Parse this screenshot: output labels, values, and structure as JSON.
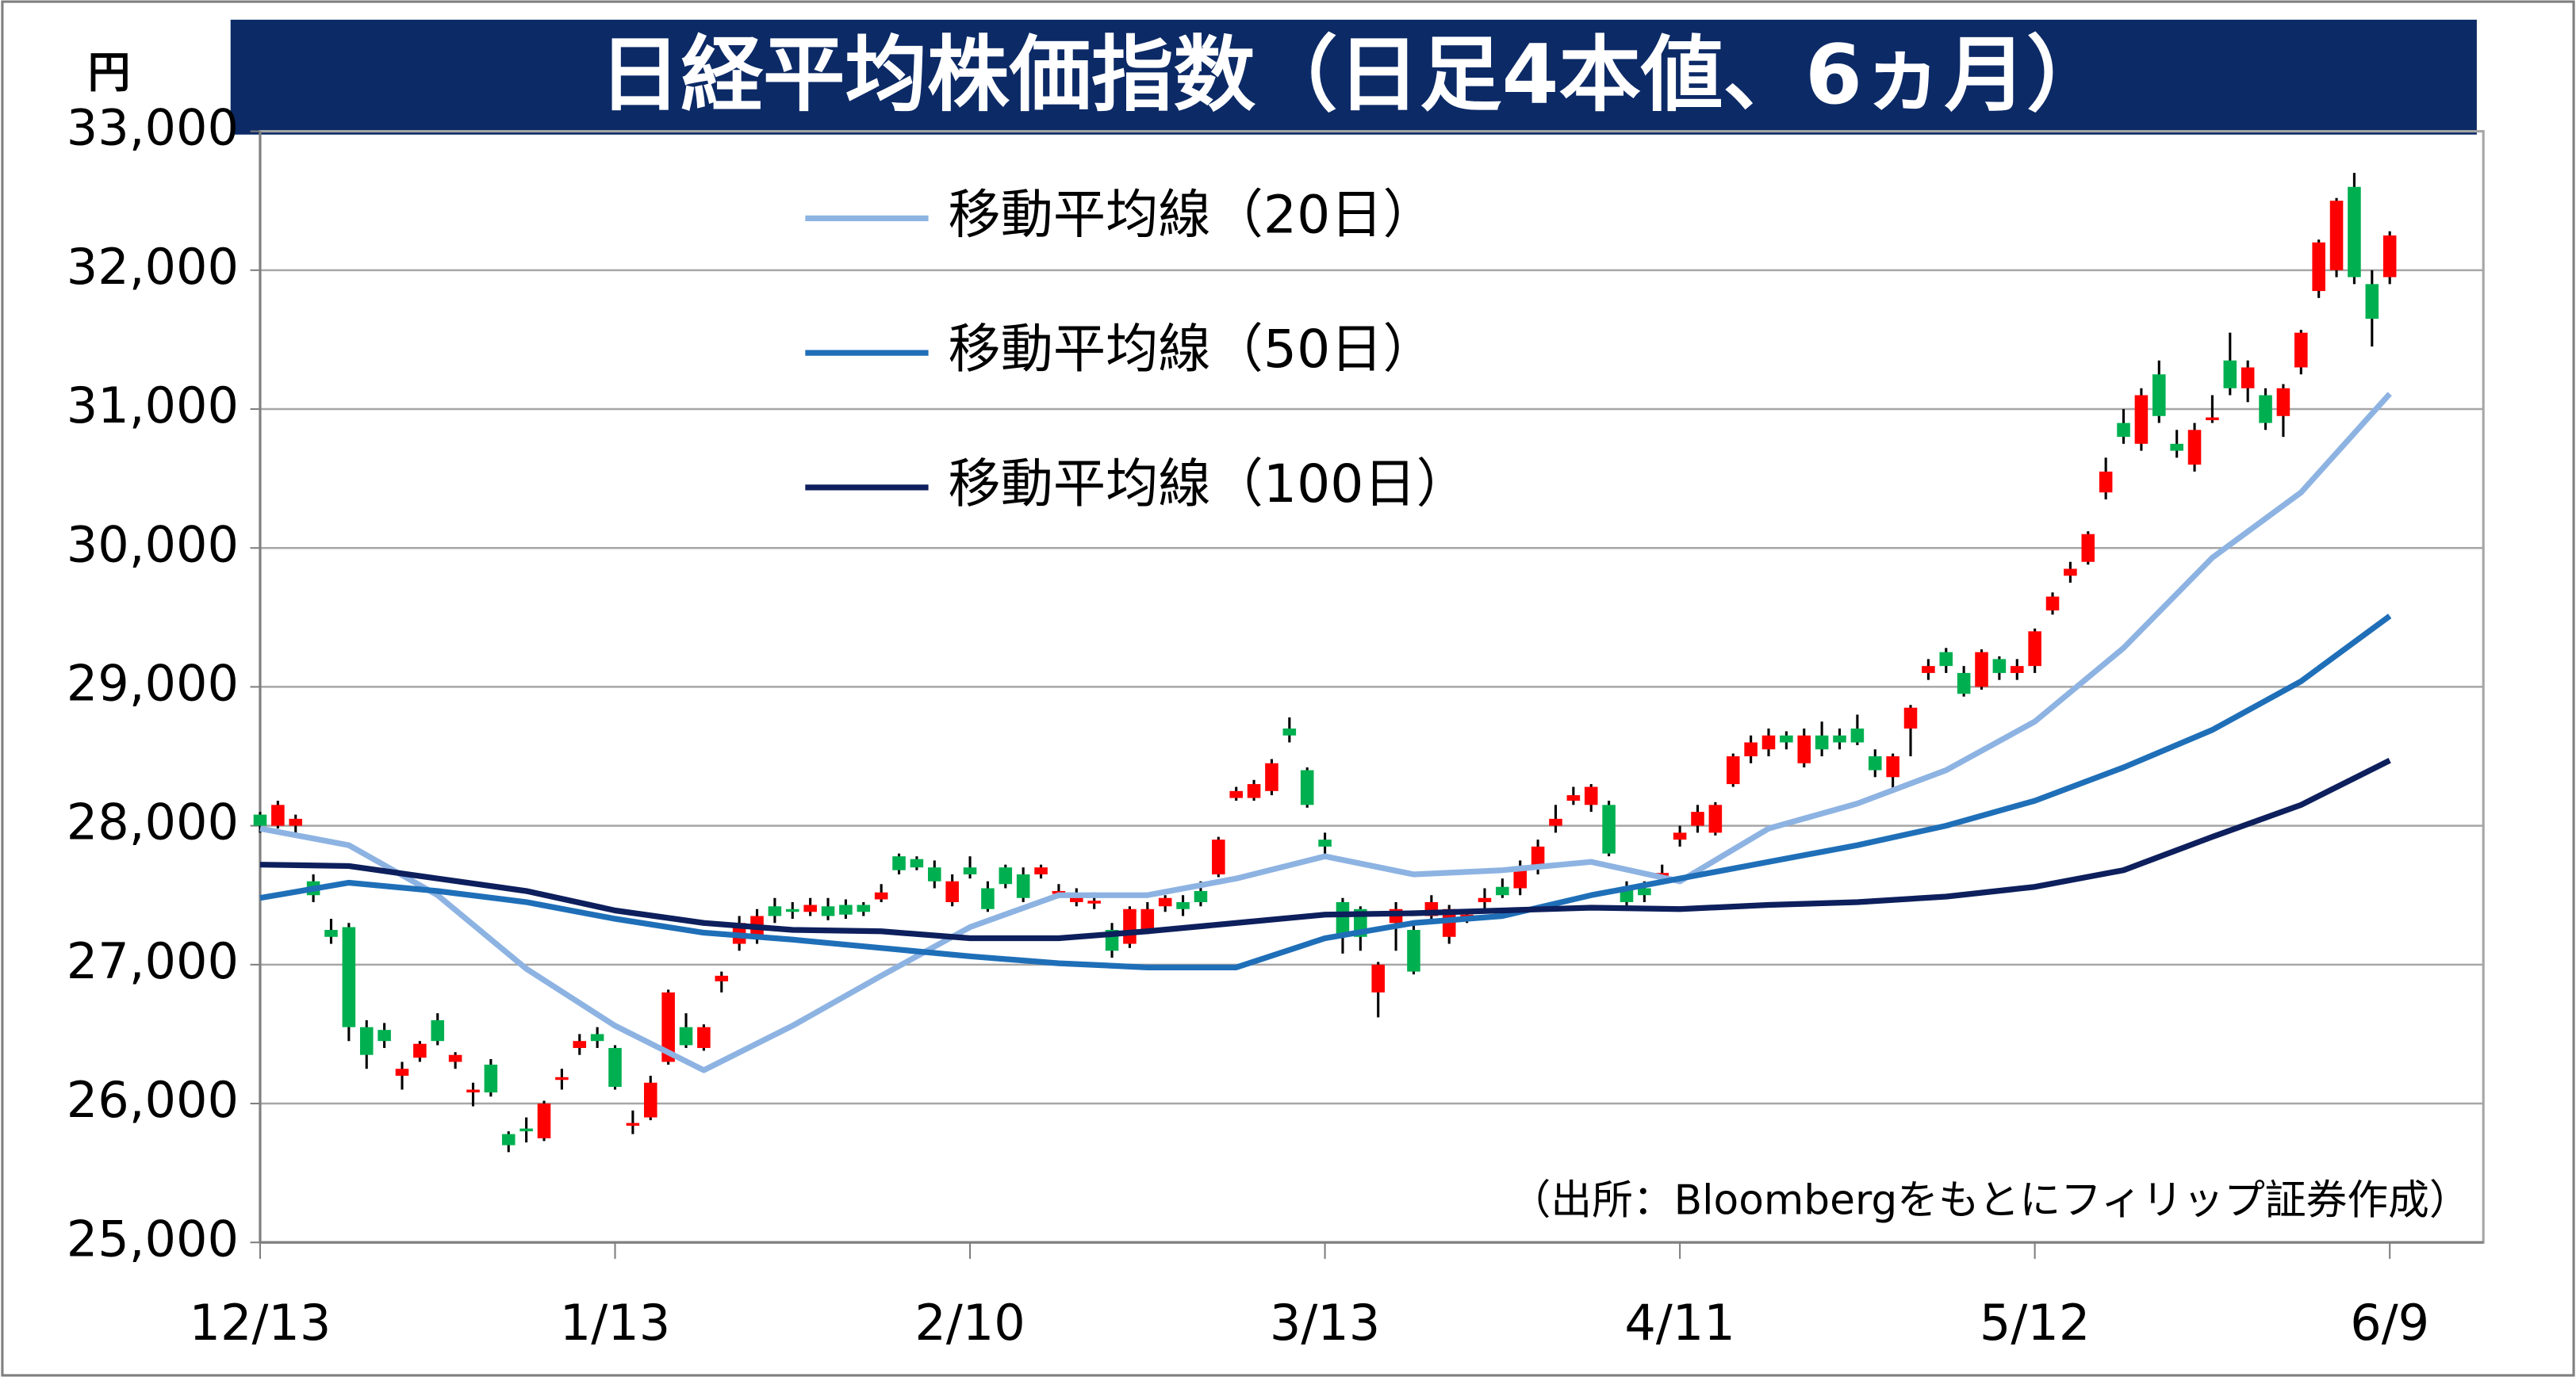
{
  "chart_data": {
    "type": "candlestick",
    "title": "日経平均株価指数（日足4本値、6ヵ月）",
    "y_label": "円",
    "annotation": "（出所：Bloombergをもとにフィリップ証券作成）",
    "categories": [
      "12/13",
      null,
      null,
      null,
      null,
      null,
      null,
      null,
      null,
      null,
      null,
      null,
      null,
      null,
      null,
      null,
      null,
      null,
      null,
      null,
      "1/13",
      null,
      null,
      null,
      null,
      null,
      null,
      null,
      null,
      null,
      null,
      null,
      null,
      null,
      null,
      null,
      null,
      null,
      null,
      null,
      "2/10",
      null,
      null,
      null,
      null,
      null,
      null,
      null,
      null,
      null,
      null,
      null,
      null,
      null,
      null,
      null,
      null,
      null,
      null,
      null,
      "3/13",
      null,
      null,
      null,
      null,
      null,
      null,
      null,
      null,
      null,
      null,
      null,
      null,
      null,
      null,
      null,
      null,
      null,
      null,
      null,
      "4/11",
      null,
      null,
      null,
      null,
      null,
      null,
      null,
      null,
      null,
      null,
      null,
      null,
      null,
      null,
      null,
      null,
      null,
      null,
      null,
      "5/12",
      null,
      null,
      null,
      null,
      null,
      null,
      null,
      null,
      null,
      null,
      null,
      null,
      null,
      null,
      null,
      null,
      null,
      null,
      null,
      "6/9"
    ],
    "open": [
      28080,
      28000,
      28000,
      27600,
      27250,
      27270,
      26550,
      26530,
      26200,
      26330,
      26600,
      26300,
      26080,
      26280,
      25780,
      25820,
      25750,
      26170,
      26400,
      26500,
      26400,
      25840,
      25900,
      26300,
      26550,
      26400,
      26880,
      27150,
      27200,
      27420,
      27400,
      27380,
      27420,
      27430,
      27430,
      27470,
      27780,
      27760,
      27700,
      27450,
      27700,
      27550,
      27700,
      27650,
      27650,
      27510,
      27450,
      27440,
      27250,
      27150,
      27250,
      27420,
      27450,
      27530,
      27650,
      28200,
      28200,
      28250,
      28700,
      28400,
      27900,
      27450,
      27400,
      26800,
      27300,
      27250,
      27350,
      27200,
      27340,
      27450,
      27560,
      27550,
      27700,
      28000,
      28180,
      28150,
      28150,
      27550,
      27550,
      27640,
      27900,
      28000,
      27950,
      28300,
      28500,
      28550,
      28650,
      28450,
      28650,
      28650,
      28700,
      28500,
      28350,
      28700,
      29100,
      29250,
      29100,
      29000,
      29200,
      29100,
      29150,
      29550,
      29800,
      29900,
      30400,
      30900,
      30750,
      31250,
      30750,
      30600,
      30920,
      31350,
      31150,
      31100,
      30950,
      31300,
      31850,
      32000,
      32600,
      31900,
      31950
    ],
    "high": [
      28100,
      28180,
      28080,
      27650,
      27330,
      27300,
      26600,
      26580,
      26300,
      26450,
      26650,
      26370,
      26150,
      26320,
      25800,
      25900,
      26020,
      26250,
      26500,
      26550,
      26420,
      25950,
      26200,
      26820,
      26650,
      26570,
      26950,
      27350,
      27400,
      27480,
      27450,
      27480,
      27480,
      27470,
      27450,
      27580,
      27800,
      27780,
      27750,
      27650,
      27780,
      27600,
      27720,
      27700,
      27720,
      27580,
      27550,
      27520,
      27300,
      27420,
      27450,
      27500,
      27500,
      27600,
      27920,
      28280,
      28330,
      28480,
      28780,
      28420,
      27950,
      27480,
      27420,
      27020,
      27450,
      27280,
      27500,
      27430,
      27400,
      27550,
      27620,
      27750,
      27900,
      28150,
      28280,
      28300,
      28180,
      27600,
      27600,
      27720,
      28000,
      28150,
      28170,
      28520,
      28650,
      28700,
      28680,
      28700,
      28750,
      28700,
      28800,
      28550,
      28520,
      28870,
      29200,
      29280,
      29150,
      29270,
      29220,
      29200,
      29420,
      29680,
      29900,
      30120,
      30650,
      31000,
      31150,
      31350,
      30850,
      30900,
      31100,
      31550,
      31350,
      31150,
      31180,
      31570,
      32220,
      32520,
      32700,
      32000,
      32280
    ],
    "low": [
      27950,
      27980,
      27950,
      27450,
      27150,
      26450,
      26250,
      26400,
      26100,
      26300,
      26420,
      26250,
      25980,
      26050,
      25650,
      25720,
      25730,
      26100,
      26350,
      26400,
      26100,
      25780,
      25880,
      26280,
      26400,
      26380,
      26800,
      27100,
      27150,
      27300,
      27330,
      27350,
      27320,
      27330,
      27350,
      27450,
      27650,
      27680,
      27550,
      27420,
      27620,
      27380,
      27550,
      27450,
      27620,
      27480,
      27420,
      27400,
      27050,
      27120,
      27220,
      27380,
      27350,
      27420,
      27630,
      28180,
      28180,
      28220,
      28600,
      28130,
      27780,
      27080,
      27100,
      26620,
      27100,
      26930,
      27300,
      27150,
      27300,
      27400,
      27480,
      27500,
      27650,
      27950,
      28150,
      28100,
      27780,
      27400,
      27450,
      27600,
      27850,
      27950,
      27930,
      28280,
      28450,
      28500,
      28550,
      28420,
      28500,
      28550,
      28580,
      28350,
      28250,
      28500,
      29050,
      29100,
      28930,
      28980,
      29050,
      29050,
      29100,
      29520,
      29750,
      29880,
      30350,
      30750,
      30700,
      30900,
      30650,
      30550,
      30900,
      31100,
      31050,
      30850,
      30800,
      31250,
      31800,
      31950,
      31900,
      31450,
      31900
    ],
    "close": [
      28000,
      28150,
      28050,
      27500,
      27200,
      26550,
      26350,
      26450,
      26250,
      26430,
      26450,
      26350,
      26100,
      26080,
      25700,
      25800,
      26000,
      26190,
      26450,
      26450,
      26120,
      25860,
      26150,
      26800,
      26420,
      26550,
      26920,
      27300,
      27350,
      27350,
      27380,
      27430,
      27350,
      27360,
      27380,
      27520,
      27680,
      27700,
      27600,
      27600,
      27650,
      27400,
      27580,
      27480,
      27700,
      27530,
      27500,
      27460,
      27100,
      27400,
      27400,
      27480,
      27400,
      27450,
      27900,
      28250,
      28300,
      28450,
      28650,
      28150,
      27850,
      27200,
      27200,
      27000,
      27400,
      26950,
      27450,
      27400,
      27360,
      27480,
      27500,
      27700,
      27850,
      28050,
      28220,
      28280,
      27800,
      27450,
      27500,
      27660,
      27950,
      28100,
      28150,
      28500,
      28600,
      28650,
      28600,
      28650,
      28550,
      28600,
      28600,
      28400,
      28500,
      28850,
      29150,
      29150,
      28950,
      29250,
      29100,
      29150,
      29400,
      29650,
      29850,
      30100,
      30550,
      30800,
      31100,
      30950,
      30700,
      30850,
      30940,
      31150,
      31300,
      30900,
      31150,
      31550,
      32200,
      32500,
      31950,
      31650,
      32250
    ],
    "up_color": "#ff0000",
    "down_color": "#00b050",
    "series": [
      {
        "name": "移動平均線（20日）",
        "color": "#8db3e2",
        "x": [
          0,
          5,
          10,
          15,
          20,
          25,
          30,
          35,
          40,
          45,
          50,
          55,
          60,
          65,
          70,
          75,
          80,
          85,
          90,
          95,
          100,
          105,
          110,
          115,
          120
        ],
        "values": [
          27980,
          27860,
          27500,
          26970,
          26560,
          26240,
          26560,
          26920,
          27270,
          27500,
          27500,
          27620,
          27780,
          27650,
          27680,
          27740,
          27600,
          27980,
          28160,
          28400,
          28750,
          29280,
          29930,
          30400,
          31110
        ]
      },
      {
        "name": "移動平均線（50日）",
        "color": "#1f6fb8",
        "x": [
          0,
          5,
          10,
          15,
          20,
          25,
          30,
          35,
          40,
          45,
          50,
          55,
          60,
          65,
          70,
          75,
          80,
          85,
          90,
          95,
          100,
          105,
          110,
          115,
          120
        ],
        "values": [
          27480,
          27590,
          27530,
          27450,
          27330,
          27230,
          27180,
          27120,
          27060,
          27010,
          26980,
          26980,
          27190,
          27300,
          27350,
          27500,
          27620,
          27740,
          27860,
          28000,
          28180,
          28420,
          28690,
          29040,
          29510
        ]
      },
      {
        "name": "移動平均線（100日）",
        "color": "#0d1f5c",
        "x": [
          0,
          5,
          10,
          15,
          20,
          25,
          30,
          35,
          40,
          45,
          50,
          55,
          60,
          65,
          70,
          75,
          80,
          85,
          90,
          95,
          100,
          105,
          110,
          115,
          120
        ],
        "values": [
          27720,
          27710,
          27620,
          27530,
          27390,
          27300,
          27250,
          27240,
          27190,
          27190,
          27240,
          27300,
          27360,
          27370,
          27390,
          27410,
          27400,
          27430,
          27450,
          27490,
          27560,
          27680,
          27920,
          28150,
          28470
        ]
      }
    ],
    "ylim": [
      25000,
      33000
    ],
    "yticks": [
      {
        "value": 25000,
        "label": "25,000"
      },
      {
        "value": 26000,
        "label": "26,000"
      },
      {
        "value": 27000,
        "label": "27,000"
      },
      {
        "value": 28000,
        "label": "28,000"
      },
      {
        "value": 29000,
        "label": "29,000"
      },
      {
        "value": 30000,
        "label": "30,000"
      },
      {
        "value": 31000,
        "label": "31,000"
      },
      {
        "value": 32000,
        "label": "32,000"
      },
      {
        "value": 33000,
        "label": "33,000"
      }
    ],
    "grid": true,
    "legend": "upper left"
  }
}
